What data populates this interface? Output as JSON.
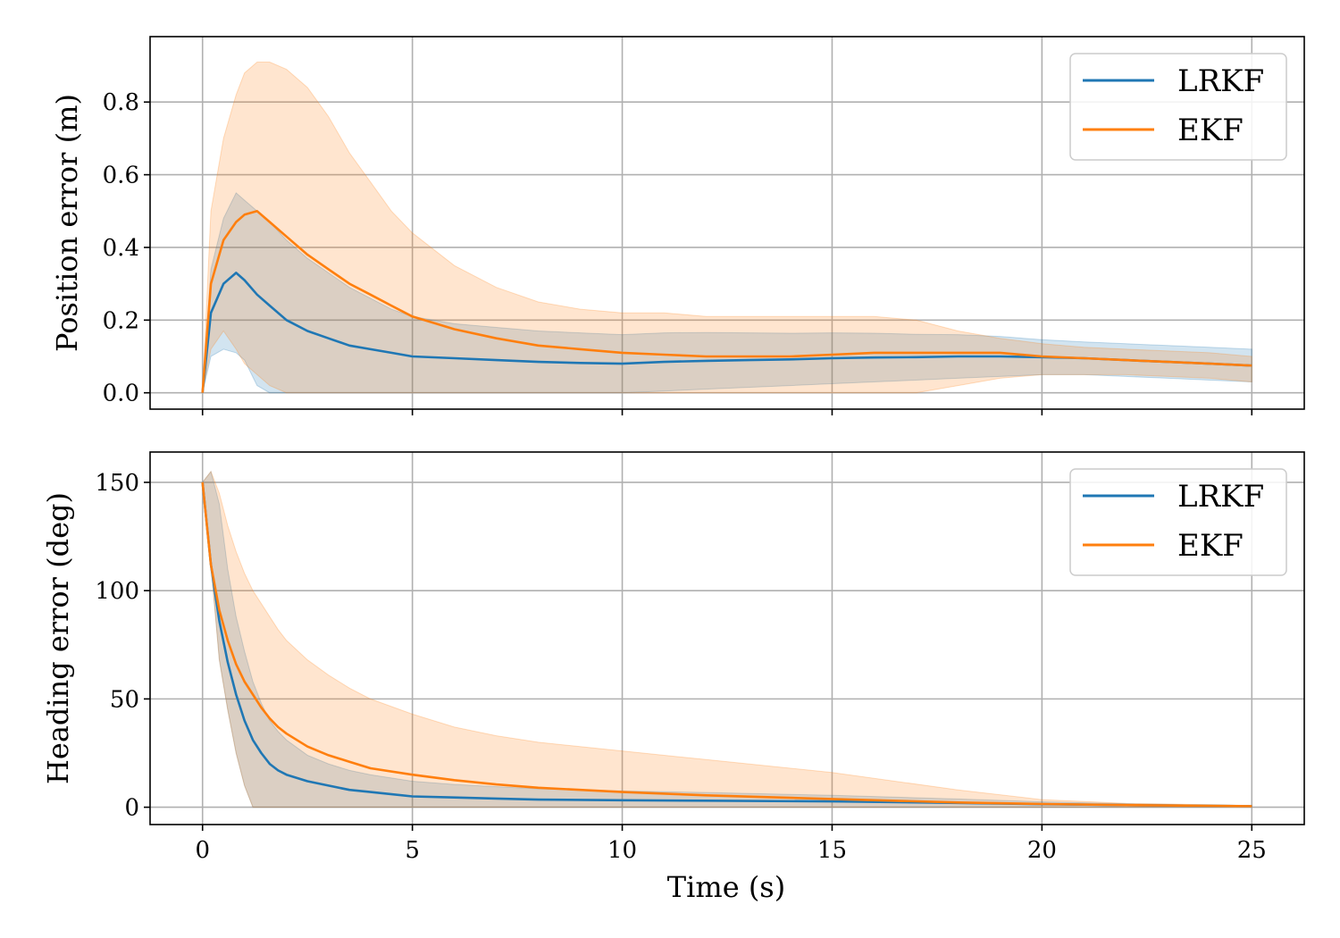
{
  "colors": {
    "lrkf": "#1f77b4",
    "ekf": "#ff7f0e",
    "grid": "#b0b0b0"
  },
  "chart_data": [
    {
      "type": "line",
      "panel": "top",
      "title": "",
      "xlabel": "",
      "ylabel": "Position error (m)",
      "xlim": [
        -1.25,
        26.25
      ],
      "ylim": [
        -0.045,
        0.98
      ],
      "xticks": [
        0,
        5,
        10,
        15,
        20,
        25
      ],
      "show_xtick_labels": false,
      "yticks": [
        0.0,
        0.2,
        0.4,
        0.6,
        0.8
      ],
      "ytick_labels": [
        "0.0",
        "0.2",
        "0.4",
        "0.6",
        "0.8"
      ],
      "grid": true,
      "legend": "top-right",
      "series": [
        {
          "name": "LRKF",
          "color": "#1f77b4",
          "x": [
            0,
            0.2,
            0.5,
            0.8,
            1.0,
            1.3,
            1.6,
            2.0,
            2.5,
            3.0,
            3.5,
            4.0,
            4.5,
            5.0,
            6.0,
            7.0,
            8.0,
            9.0,
            10.0,
            11.0,
            12.0,
            13.0,
            14.0,
            15.0,
            16.0,
            17.0,
            18.0,
            19.0,
            20.0,
            21.0,
            22.0,
            23.0,
            24.0,
            25.0
          ],
          "mean": [
            0.0,
            0.22,
            0.3,
            0.33,
            0.31,
            0.27,
            0.24,
            0.2,
            0.17,
            0.15,
            0.13,
            0.12,
            0.11,
            0.1,
            0.095,
            0.09,
            0.085,
            0.082,
            0.08,
            0.085,
            0.088,
            0.09,
            0.092,
            0.095,
            0.097,
            0.098,
            0.1,
            0.1,
            0.098,
            0.095,
            0.09,
            0.085,
            0.08,
            0.075
          ],
          "lower": [
            0.0,
            0.1,
            0.12,
            0.11,
            0.09,
            0.02,
            0.0,
            0.0,
            0.0,
            0.0,
            0.0,
            0.0,
            0.0,
            0.0,
            0.0,
            0.0,
            0.0,
            0.0,
            0.0,
            0.005,
            0.01,
            0.015,
            0.02,
            0.025,
            0.03,
            0.035,
            0.04,
            0.045,
            0.05,
            0.05,
            0.045,
            0.04,
            0.035,
            0.03
          ],
          "upper": [
            0.0,
            0.34,
            0.48,
            0.55,
            0.53,
            0.5,
            0.47,
            0.42,
            0.37,
            0.33,
            0.29,
            0.26,
            0.23,
            0.21,
            0.19,
            0.18,
            0.17,
            0.165,
            0.16,
            0.165,
            0.166,
            0.165,
            0.164,
            0.165,
            0.164,
            0.161,
            0.16,
            0.155,
            0.146,
            0.14,
            0.135,
            0.13,
            0.125,
            0.12
          ]
        },
        {
          "name": "EKF",
          "color": "#ff7f0e",
          "x": [
            0,
            0.2,
            0.5,
            0.8,
            1.0,
            1.3,
            1.6,
            2.0,
            2.5,
            3.0,
            3.5,
            4.0,
            4.5,
            5.0,
            6.0,
            7.0,
            8.0,
            9.0,
            10.0,
            11.0,
            12.0,
            13.0,
            14.0,
            15.0,
            16.0,
            17.0,
            18.0,
            19.0,
            20.0,
            21.0,
            22.0,
            23.0,
            24.0,
            25.0
          ],
          "mean": [
            0.0,
            0.3,
            0.42,
            0.47,
            0.49,
            0.5,
            0.47,
            0.43,
            0.38,
            0.34,
            0.3,
            0.27,
            0.24,
            0.21,
            0.175,
            0.15,
            0.13,
            0.12,
            0.11,
            0.105,
            0.1,
            0.1,
            0.1,
            0.105,
            0.11,
            0.11,
            0.11,
            0.11,
            0.1,
            0.095,
            0.09,
            0.085,
            0.08,
            0.075
          ],
          "lower": [
            0.0,
            0.12,
            0.17,
            0.12,
            0.08,
            0.05,
            0.02,
            0.0,
            0.0,
            0.0,
            0.0,
            0.0,
            0.0,
            0.0,
            0.0,
            0.0,
            0.0,
            0.0,
            0.0,
            0.0,
            0.0,
            0.0,
            0.0,
            0.0,
            0.0,
            0.0,
            0.02,
            0.04,
            0.05,
            0.05,
            0.05,
            0.045,
            0.04,
            0.03
          ],
          "upper": [
            0.0,
            0.5,
            0.7,
            0.82,
            0.88,
            0.91,
            0.91,
            0.89,
            0.84,
            0.76,
            0.66,
            0.58,
            0.5,
            0.44,
            0.35,
            0.29,
            0.25,
            0.23,
            0.22,
            0.22,
            0.21,
            0.21,
            0.21,
            0.21,
            0.21,
            0.2,
            0.17,
            0.15,
            0.135,
            0.125,
            0.12,
            0.115,
            0.11,
            0.1
          ]
        }
      ]
    },
    {
      "type": "line",
      "panel": "bottom",
      "title": "",
      "xlabel": "Time (s)",
      "ylabel": "Heading error (deg)",
      "xlim": [
        -1.25,
        26.25
      ],
      "ylim": [
        -8,
        164
      ],
      "xticks": [
        0,
        5,
        10,
        15,
        20,
        25
      ],
      "xtick_labels": [
        "0",
        "5",
        "10",
        "15",
        "20",
        "25"
      ],
      "show_xtick_labels": true,
      "yticks": [
        0,
        50,
        100,
        150
      ],
      "ytick_labels": [
        "0",
        "50",
        "100",
        "150"
      ],
      "grid": true,
      "legend": "top-right",
      "series": [
        {
          "name": "LRKF",
          "color": "#1f77b4",
          "x": [
            0,
            0.2,
            0.4,
            0.6,
            0.8,
            1.0,
            1.2,
            1.4,
            1.6,
            1.8,
            2.0,
            2.5,
            3.0,
            3.5,
            4.0,
            5.0,
            6.0,
            7.0,
            8.0,
            10.0,
            12.0,
            15.0,
            18.0,
            20.0,
            22.0,
            25.0
          ],
          "mean": [
            150,
            112,
            86,
            67,
            52,
            40,
            31,
            25,
            20,
            17,
            15,
            12,
            10,
            8,
            7,
            5,
            4.5,
            4,
            3.5,
            3.2,
            3.0,
            2.7,
            2.0,
            1.4,
            1.0,
            0.5
          ],
          "lower": [
            150,
            112,
            68,
            45,
            25,
            10,
            0,
            0,
            0,
            0,
            0,
            0,
            0,
            0,
            0,
            0,
            0,
            0,
            0,
            0,
            0,
            0,
            0,
            0,
            0,
            0
          ],
          "upper": [
            150,
            155,
            140,
            110,
            88,
            72,
            58,
            48,
            40,
            35,
            31,
            24,
            20,
            17,
            15,
            12,
            10.5,
            9.5,
            8.5,
            7.5,
            6.8,
            5.5,
            3.8,
            2.5,
            1.6,
            0.8
          ]
        },
        {
          "name": "EKF",
          "color": "#ff7f0e",
          "x": [
            0,
            0.2,
            0.4,
            0.6,
            0.8,
            1.0,
            1.2,
            1.4,
            1.6,
            1.8,
            2.0,
            2.5,
            3.0,
            3.5,
            4.0,
            5.0,
            6.0,
            7.0,
            8.0,
            10.0,
            12.0,
            15.0,
            18.0,
            20.0,
            22.0,
            25.0
          ],
          "mean": [
            150,
            112,
            91,
            77,
            66,
            58,
            52,
            46,
            41,
            37,
            34,
            28,
            24,
            21,
            18,
            15,
            12.5,
            10.5,
            9,
            7,
            5.5,
            3.8,
            2.2,
            1.5,
            1.0,
            0.5
          ],
          "lower": [
            150,
            112,
            68,
            45,
            25,
            10,
            0,
            0,
            0,
            0,
            0,
            0,
            0,
            0,
            0,
            0,
            0,
            0,
            0,
            0,
            0,
            0,
            0,
            0,
            0,
            0
          ],
          "upper": [
            150,
            155,
            145,
            130,
            118,
            108,
            100,
            94,
            88,
            82,
            77,
            68,
            61,
            55,
            50,
            43,
            37,
            33,
            30,
            26,
            22,
            16,
            8,
            3.5,
            1.8,
            0.8
          ]
        }
      ]
    }
  ]
}
